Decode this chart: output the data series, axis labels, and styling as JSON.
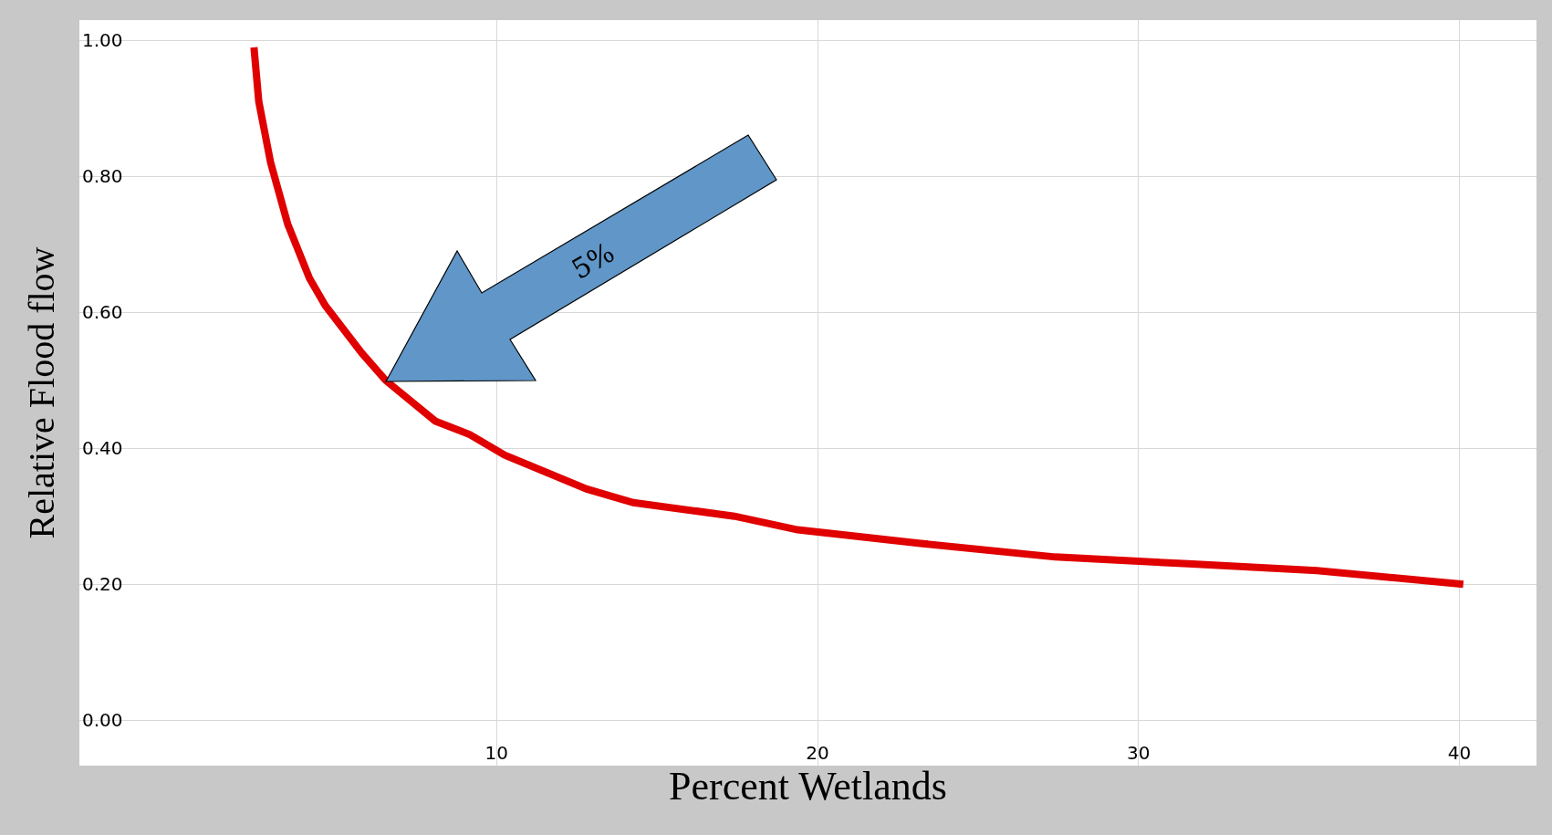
{
  "chart_data": {
    "type": "line",
    "xlabel": "Percent Wetlands",
    "ylabel": "Relative Flood flow",
    "x": [
      2.44,
      2.59,
      2.96,
      3.49,
      4.17,
      4.66,
      5.8,
      6.54,
      8.09,
      9.17,
      10.25,
      12.81,
      14.26,
      17.41,
      19.38,
      23.21,
      27.41,
      31.54,
      35.56,
      40.12
    ],
    "series": [
      {
        "color": "#e00000",
        "values": [
          0.99,
          0.91,
          0.82,
          0.73,
          0.65,
          0.61,
          0.54,
          0.5,
          0.44,
          0.42,
          0.39,
          0.34,
          0.32,
          0.3,
          0.28,
          0.26,
          0.24,
          0.23,
          0.22,
          0.2
        ]
      }
    ],
    "xlim": [
      -3,
      42.4
    ],
    "ylim": [
      -0.067,
      1.03
    ],
    "xticks": [
      10,
      20,
      30,
      40
    ],
    "yticks": [
      {
        "value": 0,
        "label": "0.00"
      },
      {
        "value": 0.2,
        "label": "0.20"
      },
      {
        "value": 0.4,
        "label": "0.40"
      },
      {
        "value": 0.6,
        "label": "0.60"
      },
      {
        "value": 0.8,
        "label": "0.80"
      },
      {
        "value": 1,
        "label": "1.00"
      }
    ],
    "annotations": [
      "5%"
    ],
    "grid": true,
    "marker": "none",
    "line_style": "solid"
  }
}
